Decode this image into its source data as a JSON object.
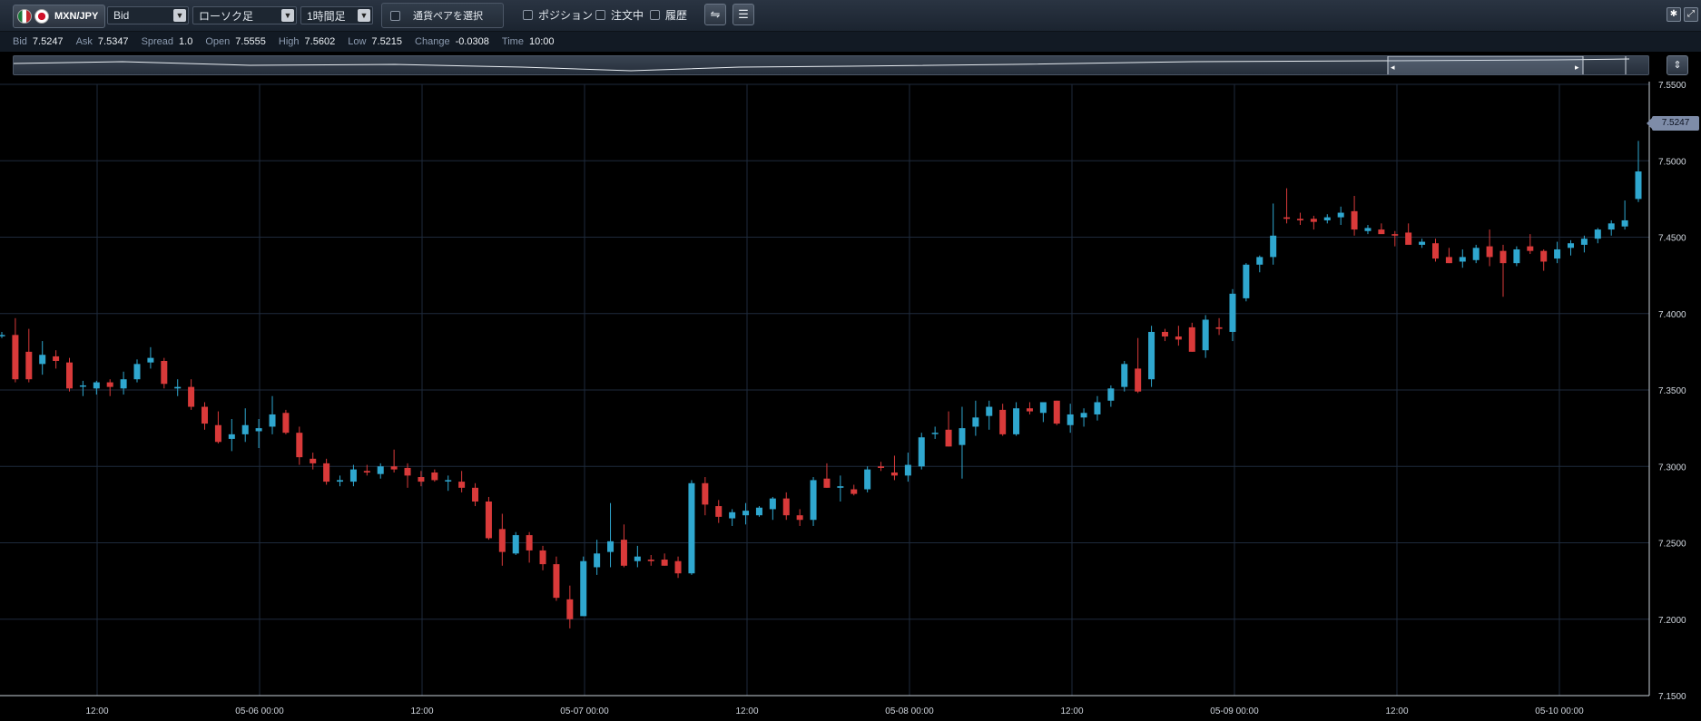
{
  "toolbar": {
    "pair": "MXN/JPY",
    "price_type": "Bid",
    "chart_kind": "ローソク足",
    "timeframe": "1時間足",
    "pair_select": "通貨ペアを選択",
    "position": "ポジション",
    "orders": "注文中",
    "history": "履歴"
  },
  "quote": {
    "bid_label": "Bid",
    "bid": "7.5247",
    "ask_label": "Ask",
    "ask": "7.5347",
    "spread_label": "Spread",
    "spread": "1.0",
    "open_label": "Open",
    "open": "7.5555",
    "high_label": "High",
    "high": "7.5602",
    "low_label": "Low",
    "low": "7.5215",
    "change_label": "Change",
    "change": "-0.0308",
    "time_label": "Time",
    "time": "10:00"
  },
  "current_price": "7.5247",
  "colors": {
    "up": "#2fa7cf",
    "down": "#d93a3a",
    "grid": "#1e2a3c",
    "axis_text": "#d0d6de"
  },
  "chart_data": {
    "type": "candlestick",
    "ylim": [
      7.15,
      7.55
    ],
    "y_ticks": [
      "7.5500",
      "7.5000",
      "7.4500",
      "7.4000",
      "7.3500",
      "7.3000",
      "7.2500",
      "7.2000",
      "7.1500"
    ],
    "x_ticks": [
      "12:00",
      "05-06 00:00",
      "12:00",
      "05-07 00:00",
      "12:00",
      "05-08 00:00",
      "12:00",
      "05-09 00:00",
      "12:00",
      "05-10 00:00"
    ],
    "candles": [
      [
        7.386,
        7.388,
        7.384,
        7.386
      ],
      [
        7.386,
        7.397,
        7.355,
        7.357
      ],
      [
        7.375,
        7.39,
        7.355,
        7.357
      ],
      [
        7.367,
        7.382,
        7.36,
        7.373
      ],
      [
        7.372,
        7.376,
        7.364,
        7.369
      ],
      [
        7.368,
        7.371,
        7.349,
        7.351
      ],
      [
        7.353,
        7.356,
        7.346,
        7.353
      ],
      [
        7.351,
        7.356,
        7.347,
        7.355
      ],
      [
        7.355,
        7.357,
        7.346,
        7.352
      ],
      [
        7.351,
        7.362,
        7.347,
        7.357
      ],
      [
        7.357,
        7.37,
        7.355,
        7.367
      ],
      [
        7.368,
        7.378,
        7.364,
        7.371
      ],
      [
        7.369,
        7.371,
        7.351,
        7.354
      ],
      [
        7.351,
        7.357,
        7.346,
        7.352
      ],
      [
        7.352,
        7.357,
        7.337,
        7.339
      ],
      [
        7.339,
        7.342,
        7.324,
        7.328
      ],
      [
        7.327,
        7.336,
        7.315,
        7.316
      ],
      [
        7.318,
        7.331,
        7.31,
        7.321
      ],
      [
        7.321,
        7.338,
        7.316,
        7.327
      ],
      [
        7.323,
        7.331,
        7.312,
        7.325
      ],
      [
        7.326,
        7.346,
        7.321,
        7.334
      ],
      [
        7.335,
        7.337,
        7.321,
        7.322
      ],
      [
        7.322,
        7.326,
        7.301,
        7.306
      ],
      [
        7.305,
        7.309,
        7.298,
        7.302
      ],
      [
        7.302,
        7.305,
        7.288,
        7.29
      ],
      [
        7.29,
        7.294,
        7.287,
        7.291
      ],
      [
        7.29,
        7.301,
        7.287,
        7.298
      ],
      [
        7.297,
        7.301,
        7.294,
        7.296
      ],
      [
        7.295,
        7.302,
        7.292,
        7.3
      ],
      [
        7.3,
        7.311,
        7.296,
        7.298
      ],
      [
        7.299,
        7.302,
        7.286,
        7.294
      ],
      [
        7.293,
        7.297,
        7.287,
        7.29
      ],
      [
        7.296,
        7.298,
        7.29,
        7.291
      ],
      [
        7.291,
        7.294,
        7.284,
        7.291
      ],
      [
        7.29,
        7.297,
        7.283,
        7.286
      ],
      [
        7.286,
        7.289,
        7.274,
        7.277
      ],
      [
        7.277,
        7.28,
        7.252,
        7.253
      ],
      [
        7.259,
        7.269,
        7.235,
        7.244
      ],
      [
        7.243,
        7.257,
        7.242,
        7.255
      ],
      [
        7.255,
        7.257,
        7.237,
        7.245
      ],
      [
        7.245,
        7.248,
        7.232,
        7.236
      ],
      [
        7.236,
        7.241,
        7.212,
        7.214
      ],
      [
        7.213,
        7.222,
        7.194,
        7.2
      ],
      [
        7.202,
        7.241,
        7.202,
        7.238
      ],
      [
        7.234,
        7.252,
        7.229,
        7.243
      ],
      [
        7.244,
        7.276,
        7.234,
        7.251
      ],
      [
        7.252,
        7.262,
        7.234,
        7.235
      ],
      [
        7.238,
        7.248,
        7.234,
        7.241
      ],
      [
        7.239,
        7.242,
        7.235,
        7.238
      ],
      [
        7.239,
        7.243,
        7.235,
        7.235
      ],
      [
        7.238,
        7.241,
        7.227,
        7.23
      ],
      [
        7.23,
        7.291,
        7.229,
        7.289
      ],
      [
        7.289,
        7.293,
        7.268,
        7.275
      ],
      [
        7.274,
        7.278,
        7.263,
        7.267
      ],
      [
        7.266,
        7.272,
        7.261,
        7.27
      ],
      [
        7.268,
        7.276,
        7.262,
        7.271
      ],
      [
        7.268,
        7.274,
        7.267,
        7.273
      ],
      [
        7.272,
        7.28,
        7.265,
        7.279
      ],
      [
        7.279,
        7.283,
        7.265,
        7.268
      ],
      [
        7.268,
        7.272,
        7.261,
        7.265
      ],
      [
        7.265,
        7.293,
        7.261,
        7.291
      ],
      [
        7.292,
        7.302,
        7.286,
        7.286
      ],
      [
        7.286,
        7.294,
        7.277,
        7.287
      ],
      [
        7.285,
        7.288,
        7.281,
        7.282
      ],
      [
        7.285,
        7.3,
        7.283,
        7.298
      ],
      [
        7.3,
        7.303,
        7.297,
        7.299
      ],
      [
        7.296,
        7.307,
        7.291,
        7.294
      ],
      [
        7.294,
        7.309,
        7.29,
        7.301
      ],
      [
        7.3,
        7.322,
        7.298,
        7.319
      ],
      [
        7.322,
        7.326,
        7.318,
        7.322
      ],
      [
        7.324,
        7.336,
        7.313,
        7.313
      ],
      [
        7.314,
        7.339,
        7.292,
        7.325
      ],
      [
        7.326,
        7.343,
        7.32,
        7.332
      ],
      [
        7.333,
        7.343,
        7.324,
        7.339
      ],
      [
        7.337,
        7.341,
        7.32,
        7.321
      ],
      [
        7.321,
        7.342,
        7.32,
        7.338
      ],
      [
        7.338,
        7.342,
        7.334,
        7.336
      ],
      [
        7.335,
        7.34,
        7.329,
        7.342
      ],
      [
        7.343,
        7.343,
        7.327,
        7.328
      ],
      [
        7.327,
        7.341,
        7.322,
        7.334
      ],
      [
        7.332,
        7.338,
        7.326,
        7.335
      ],
      [
        7.334,
        7.346,
        7.33,
        7.342
      ],
      [
        7.343,
        7.353,
        7.339,
        7.351
      ],
      [
        7.352,
        7.369,
        7.349,
        7.367
      ],
      [
        7.364,
        7.384,
        7.348,
        7.349
      ],
      [
        7.357,
        7.392,
        7.352,
        7.388
      ],
      [
        7.388,
        7.39,
        7.382,
        7.385
      ],
      [
        7.385,
        7.392,
        7.379,
        7.383
      ],
      [
        7.391,
        7.394,
        7.375,
        7.375
      ],
      [
        7.376,
        7.399,
        7.371,
        7.396
      ],
      [
        7.391,
        7.397,
        7.386,
        7.39
      ],
      [
        7.388,
        7.416,
        7.382,
        7.413
      ],
      [
        7.41,
        7.433,
        7.408,
        7.432
      ],
      [
        7.432,
        7.438,
        7.427,
        7.437
      ],
      [
        7.437,
        7.472,
        7.432,
        7.451
      ],
      [
        7.463,
        7.482,
        7.459,
        7.462
      ],
      [
        7.462,
        7.466,
        7.458,
        7.461
      ],
      [
        7.462,
        7.464,
        7.455,
        7.46
      ],
      [
        7.461,
        7.465,
        7.459,
        7.463
      ],
      [
        7.463,
        7.47,
        7.458,
        7.466
      ],
      [
        7.467,
        7.477,
        7.451,
        7.455
      ],
      [
        7.454,
        7.458,
        7.452,
        7.456
      ],
      [
        7.455,
        7.459,
        7.453,
        7.452
      ],
      [
        7.452,
        7.454,
        7.444,
        7.451
      ],
      [
        7.453,
        7.459,
        7.446,
        7.445
      ],
      [
        7.445,
        7.449,
        7.443,
        7.447
      ],
      [
        7.446,
        7.449,
        7.434,
        7.436
      ],
      [
        7.437,
        7.443,
        7.433,
        7.433
      ],
      [
        7.434,
        7.442,
        7.43,
        7.437
      ],
      [
        7.435,
        7.445,
        7.433,
        7.443
      ],
      [
        7.444,
        7.455,
        7.431,
        7.437
      ],
      [
        7.441,
        7.445,
        7.411,
        7.433
      ],
      [
        7.433,
        7.444,
        7.431,
        7.442
      ],
      [
        7.444,
        7.452,
        7.439,
        7.441
      ],
      [
        7.441,
        7.442,
        7.428,
        7.434
      ],
      [
        7.436,
        7.447,
        7.433,
        7.442
      ],
      [
        7.443,
        7.448,
        7.438,
        7.446
      ],
      [
        7.445,
        7.451,
        7.44,
        7.449
      ],
      [
        7.449,
        7.456,
        7.446,
        7.455
      ],
      [
        7.455,
        7.461,
        7.451,
        7.459
      ],
      [
        7.457,
        7.474,
        7.455,
        7.461
      ],
      [
        7.475,
        7.513,
        7.473,
        7.493
      ]
    ]
  }
}
